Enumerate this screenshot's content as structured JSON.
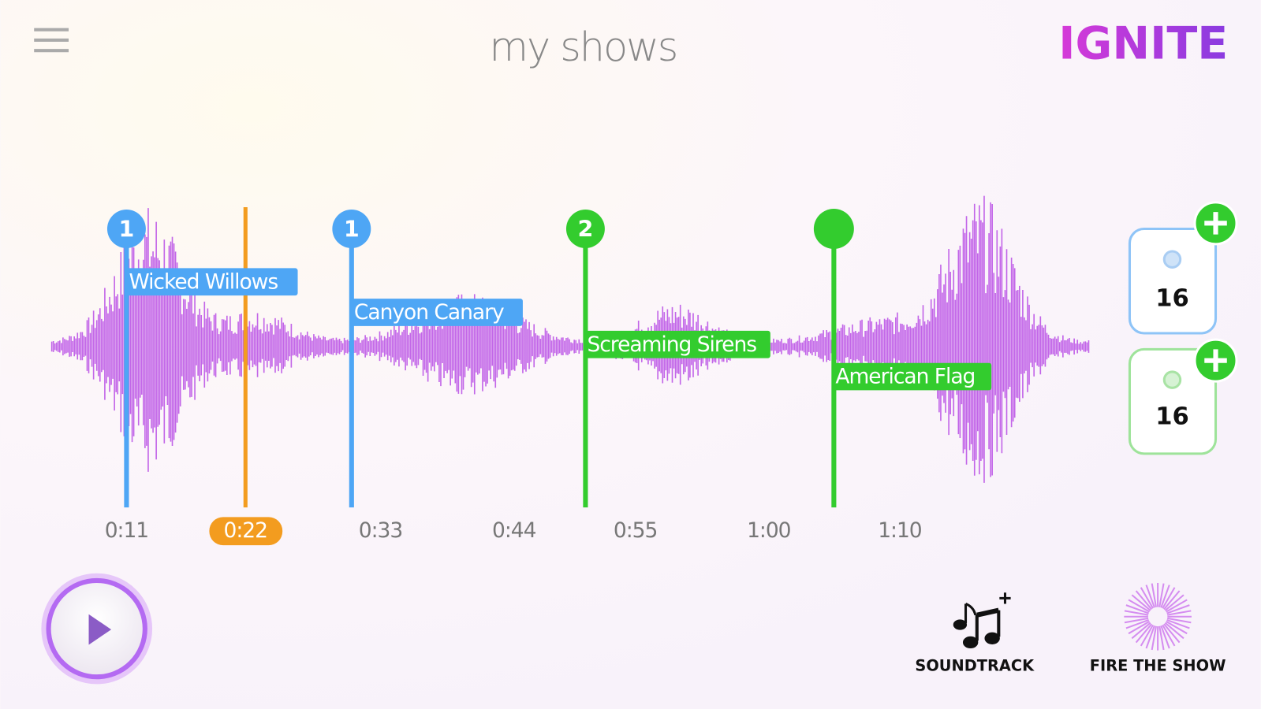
{
  "header": {
    "title": "my shows",
    "logo": "IGNITE"
  },
  "timeline": {
    "cues": [
      {
        "badge": "1",
        "label": "Wicked Willows"
      },
      {
        "badge": "1",
        "label": "Canyon Canary"
      },
      {
        "badge": "2",
        "label": "Screaming Sirens"
      },
      {
        "label": "American Flag"
      }
    ],
    "time_labels": [
      "0:11",
      "0:22",
      "0:33",
      "0:44",
      "0:55",
      "1:00",
      "1:10"
    ]
  },
  "counters": [
    {
      "count": "16"
    },
    {
      "count": "16"
    }
  ],
  "actions": [
    {
      "label": "SOUNDTRACK"
    },
    {
      "label": "FIRE THE SHOW"
    }
  ]
}
